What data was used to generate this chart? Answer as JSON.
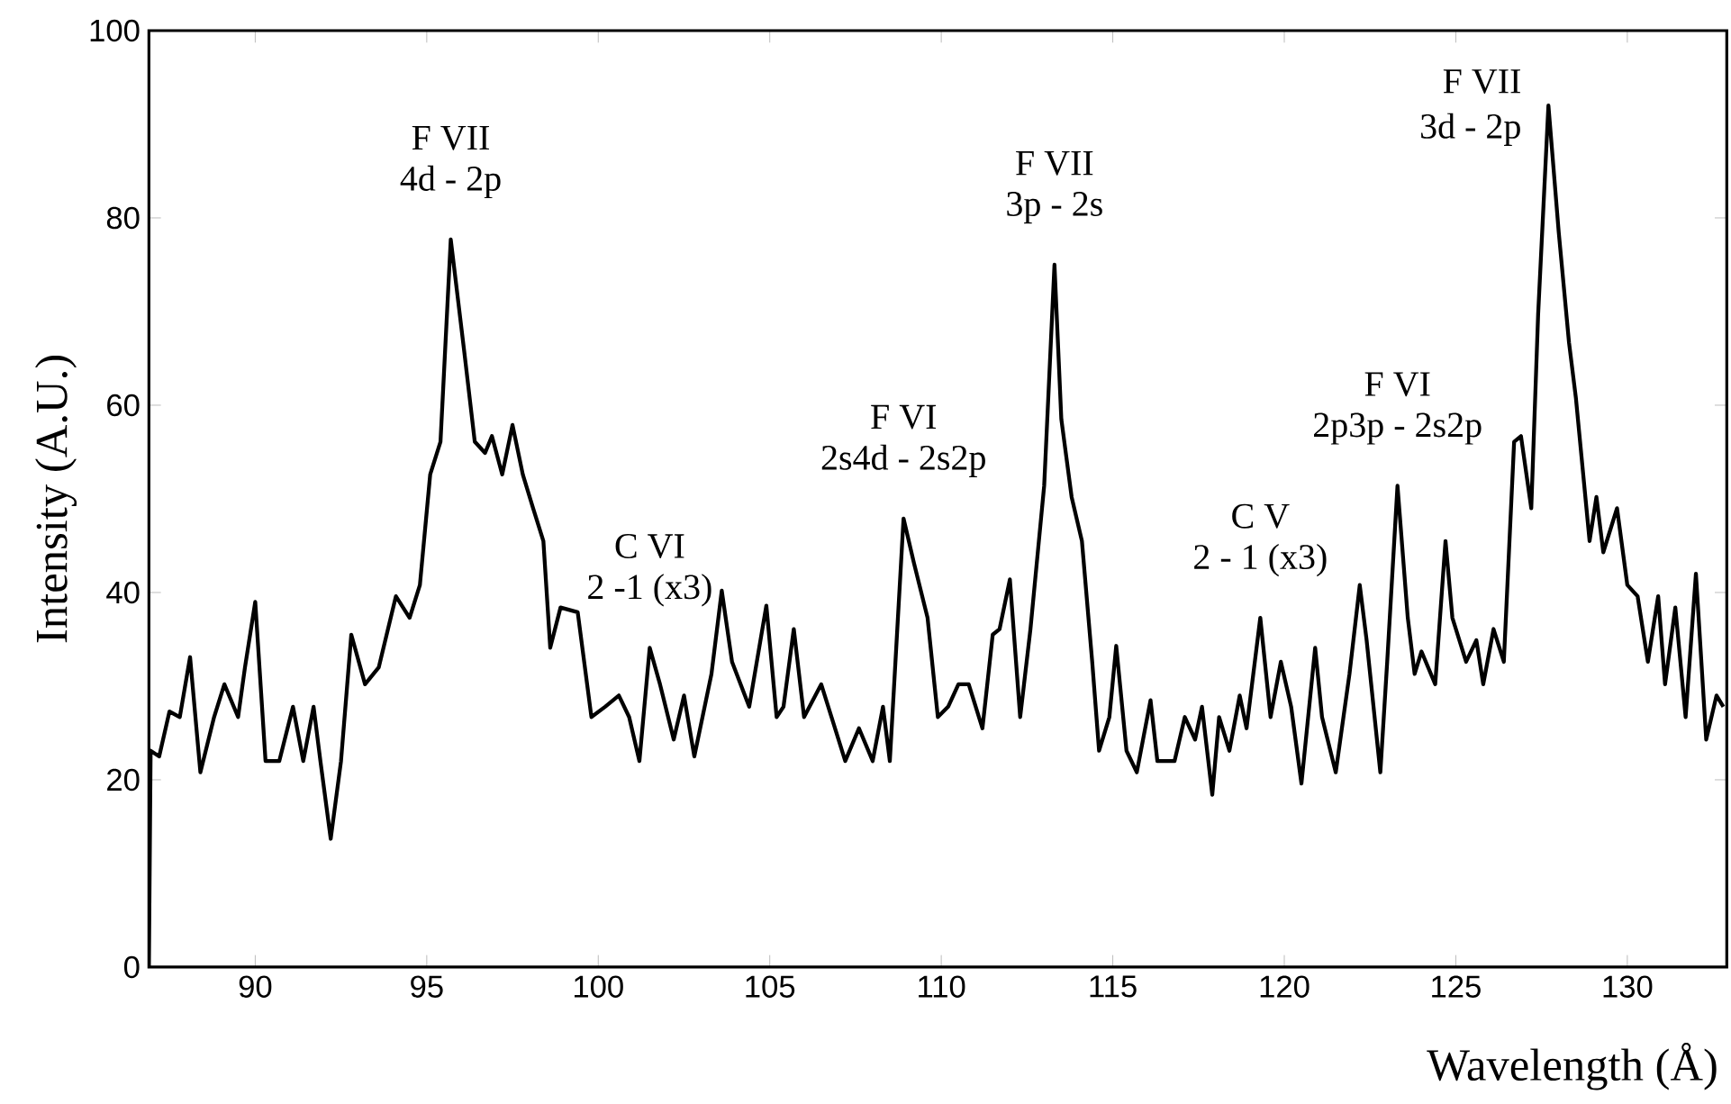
{
  "chart_data": {
    "type": "line",
    "xlabel": "Wavelength (Å)",
    "ylabel": "Intensity (A.U.)",
    "xlim": [
      86.9,
      132.9
    ],
    "ylim": [
      0,
      100
    ],
    "xticks": [
      90,
      95,
      100,
      105,
      110,
      115,
      120,
      125,
      130
    ],
    "yticks": [
      0,
      20,
      40,
      60,
      80,
      100
    ],
    "grid": false,
    "marker": "none",
    "line_style": "solid",
    "series": [
      {
        "color": "#000000",
        "x": [
          86.9,
          86.95,
          87.2,
          87.5,
          87.8,
          88.1,
          88.4,
          88.8,
          89.1,
          89.5,
          89.7,
          90.0,
          90.3,
          90.7,
          91.1,
          91.4,
          91.7,
          91.9,
          92.2,
          92.5,
          92.8,
          93.2,
          93.6,
          94.1,
          94.5,
          94.8,
          95.1,
          95.4,
          95.7,
          96.1,
          96.4,
          96.7,
          96.9,
          97.2,
          97.5,
          97.8,
          98.1,
          98.4,
          98.6,
          98.9,
          99.4,
          99.8,
          100.2,
          100.6,
          100.9,
          101.2,
          101.5,
          101.8,
          102.2,
          102.5,
          102.8,
          103.3,
          103.6,
          103.9,
          104.4,
          104.9,
          105.2,
          105.4,
          105.7,
          106.0,
          106.5,
          106.8,
          107.2,
          107.6,
          108.0,
          108.3,
          108.5,
          108.9,
          109.2,
          109.6,
          109.9,
          110.2,
          110.5,
          110.8,
          111.2,
          111.5,
          111.7,
          112.0,
          112.3,
          112.6,
          113.0,
          113.3,
          113.5,
          113.8,
          114.1,
          114.4,
          114.6,
          114.9,
          115.1,
          115.4,
          115.7,
          116.1,
          116.3,
          116.8,
          117.1,
          117.4,
          117.6,
          117.9,
          118.1,
          118.4,
          118.7,
          118.9,
          119.3,
          119.6,
          119.9,
          120.2,
          120.5,
          120.9,
          121.1,
          121.5,
          121.9,
          122.2,
          122.4,
          122.8,
          123.0,
          123.3,
          123.6,
          123.8,
          124.0,
          124.4,
          124.7,
          124.9,
          125.3,
          125.6,
          125.8,
          126.1,
          126.4,
          126.7,
          126.9,
          127.2,
          127.4,
          127.7,
          128.0,
          128.3,
          128.5,
          128.9,
          129.1,
          129.3,
          129.7,
          130.0,
          130.3,
          130.6,
          130.9,
          131.1,
          131.4,
          131.7,
          132.0,
          132.3,
          132.6,
          132.8
        ],
        "values": [
          0,
          23.1,
          22.5,
          27.3,
          26.7,
          33.1,
          20.8,
          26.7,
          30.2,
          26.7,
          32.0,
          39.0,
          22.0,
          22.0,
          27.8,
          22.0,
          27.8,
          22.0,
          13.7,
          22.0,
          35.5,
          30.2,
          32.0,
          39.6,
          37.3,
          40.8,
          52.6,
          56.1,
          77.7,
          65.5,
          56.1,
          54.9,
          56.7,
          52.6,
          57.9,
          52.6,
          49.0,
          45.5,
          34.1,
          38.4,
          37.9,
          26.7,
          27.8,
          29.0,
          26.7,
          22.0,
          34.1,
          30.2,
          24.3,
          29.0,
          22.5,
          31.3,
          40.2,
          32.6,
          27.8,
          38.6,
          26.7,
          27.8,
          36.1,
          26.7,
          30.2,
          26.7,
          22.0,
          25.5,
          22.0,
          27.8,
          22.0,
          47.9,
          43.2,
          37.3,
          26.7,
          27.8,
          30.2,
          30.2,
          25.5,
          35.5,
          36.1,
          41.4,
          26.7,
          36.1,
          51.4,
          75.0,
          58.5,
          50.2,
          45.5,
          32.6,
          23.1,
          26.7,
          34.3,
          23.1,
          20.8,
          28.5,
          22.0,
          22.0,
          26.7,
          24.3,
          27.8,
          18.4,
          26.7,
          23.1,
          29.0,
          25.5,
          37.3,
          26.7,
          32.6,
          27.8,
          19.6,
          34.1,
          26.7,
          20.8,
          31.3,
          40.8,
          34.9,
          20.8,
          32.6,
          51.4,
          37.3,
          31.3,
          33.7,
          30.2,
          45.5,
          37.3,
          32.6,
          34.9,
          30.2,
          36.1,
          32.6,
          56.1,
          56.7,
          49.0,
          69.7,
          92.0,
          78.5,
          66.7,
          60.8,
          45.5,
          50.2,
          44.3,
          49.0,
          40.8,
          39.6,
          32.6,
          39.6,
          30.2,
          38.4,
          26.7,
          42.0,
          24.3,
          29.0,
          27.8
        ]
      }
    ],
    "annotations": [
      {
        "text": "F VII",
        "x": 95.7,
        "y": 77.7
      },
      {
        "text": "4d - 2p",
        "x": 95.7,
        "y": 77.7
      },
      {
        "text": "C VI",
        "x": 101.5,
        "y": 34.1
      },
      {
        "text": "2 -1 (x3)",
        "x": 101.5,
        "y": 34.1
      },
      {
        "text": "F VI",
        "x": 108.9,
        "y": 47.9
      },
      {
        "text": "2s4d - 2s2p",
        "x": 108.9,
        "y": 47.9
      },
      {
        "text": "F VII",
        "x": 113.3,
        "y": 75.0
      },
      {
        "text": "3p - 2s",
        "x": 113.3,
        "y": 75.0
      },
      {
        "text": "C V",
        "x": 119.3,
        "y": 37.3
      },
      {
        "text": "2 - 1 (x3)",
        "x": 119.3,
        "y": 37.3
      },
      {
        "text": "F VI",
        "x": 123.3,
        "y": 51.4
      },
      {
        "text": "2p3p - 2s2p",
        "x": 123.3,
        "y": 51.4
      },
      {
        "text": "F VII",
        "x": 127.7,
        "y": 92.0
      },
      {
        "text": "3d - 2p",
        "x": 127.7,
        "y": 92.0
      }
    ]
  }
}
